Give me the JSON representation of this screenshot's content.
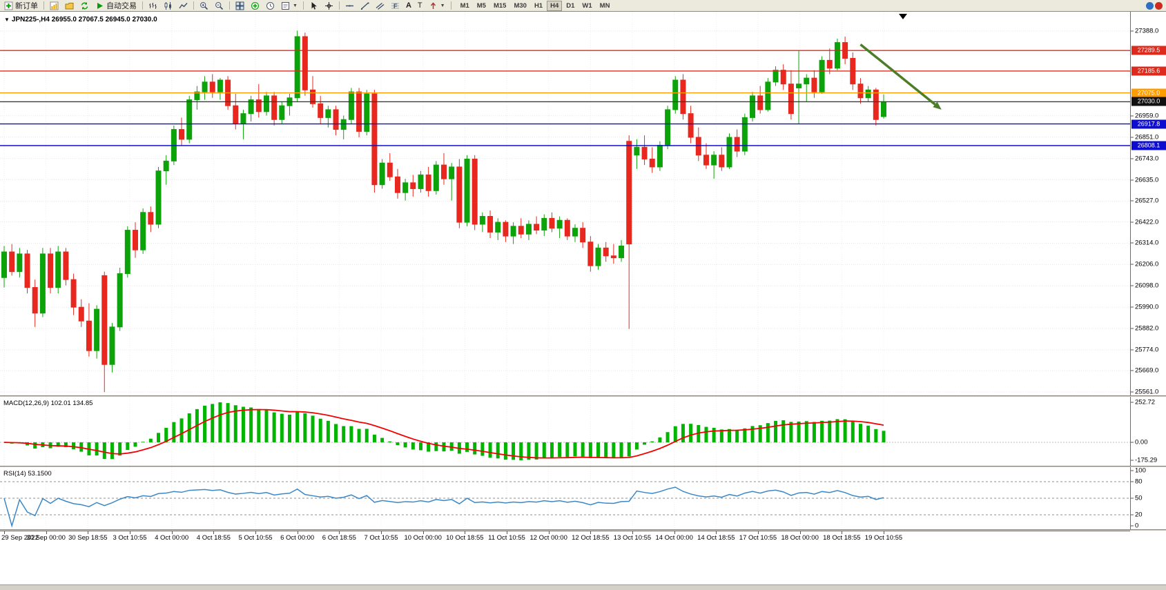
{
  "toolbar": {
    "new_order_label": "新订单",
    "autotrading_label": "自动交易",
    "text_tool_label": "A",
    "label_tool_label": "T",
    "timeframes": [
      "M1",
      "M5",
      "M15",
      "M30",
      "H1",
      "H4",
      "D1",
      "W1",
      "MN"
    ],
    "active_timeframe": "H4"
  },
  "chart": {
    "title": "JPN225-,H4  26955.0 27067.5 26945.0 27030.0"
  },
  "chart_data": [
    {
      "type": "candlestick",
      "symbol": "JPN225-",
      "timeframe": "H4",
      "ohlc_last_display": {
        "open": "26955.0",
        "high": "27067.5",
        "low": "26945.0",
        "close": "27030.0"
      },
      "ylim": [
        25561.0,
        27388.0
      ],
      "y_ticks": [
        27388.0,
        26959.0,
        26851.0,
        26743.0,
        26635.0,
        26527.0,
        26422.0,
        26314.0,
        26206.0,
        26098.0,
        25990.0,
        25882.0,
        25774.0,
        25669.0,
        25561.0
      ],
      "hlines": [
        {
          "price": 27289.5,
          "color": "#dd2a1d",
          "badge": "27289.5"
        },
        {
          "price": 27185.6,
          "color": "#dd2a1d",
          "badge": "27185.6"
        },
        {
          "price": 27075.0,
          "color": "#ff9c00",
          "badge": "27075.0"
        },
        {
          "price": 27030.0,
          "color": "#3a3a3a",
          "badge": "27030.0",
          "badge_color": "#111111"
        },
        {
          "price": 26917.8,
          "color": "#0d0dd0",
          "badge": "26917.8"
        },
        {
          "price": 26808.1,
          "color": "#0d0dd0",
          "badge": "26808.1"
        }
      ],
      "x_labels": [
        "29 Sep 2022",
        "30 Sep 00:00",
        "30 Sep 18:55",
        "3 Oct 10:55",
        "4 Oct 00:00",
        "4 Oct 18:55",
        "5 Oct 10:55",
        "6 Oct 00:00",
        "6 Oct 18:55",
        "7 Oct 10:55",
        "10 Oct 00:00",
        "10 Oct 18:55",
        "11 Oct 10:55",
        "12 Oct 00:00",
        "12 Oct 18:55",
        "13 Oct 10:55",
        "14 Oct 00:00",
        "14 Oct 18:55",
        "17 Oct 10:55",
        "18 Oct 00:00",
        "18 Oct 18:55",
        "19 Oct 10:55"
      ],
      "colors": {
        "up": "#0ca30a",
        "down": "#e8281e"
      },
      "trend_arrow": {
        "from": {
          "x_index": 111,
          "price": 27320
        },
        "to": {
          "x_index": 121.5,
          "price": 26990
        },
        "color": "#4c7d27"
      },
      "ohlc": [
        [
          26140,
          26300,
          26090,
          26270
        ],
        [
          26270,
          26310,
          26150,
          26170
        ],
        [
          26170,
          26290,
          26140,
          26260
        ],
        [
          26260,
          26280,
          26060,
          26090
        ],
        [
          26090,
          26130,
          25890,
          25960
        ],
        [
          25960,
          26290,
          25940,
          26260
        ],
        [
          26260,
          26290,
          26060,
          26090
        ],
        [
          26090,
          26300,
          26060,
          26270
        ],
        [
          26270,
          26290,
          26100,
          26130
        ],
        [
          26130,
          26160,
          25950,
          25990
        ],
        [
          25990,
          26030,
          25890,
          25920
        ],
        [
          25920,
          26010,
          25740,
          25770
        ],
        [
          25770,
          26000,
          25730,
          25980
        ],
        [
          26150,
          26170,
          25560,
          25700
        ],
        [
          25700,
          25910,
          25660,
          25890
        ],
        [
          25890,
          26190,
          25870,
          26160
        ],
        [
          26160,
          26400,
          26140,
          26380
        ],
        [
          26380,
          26420,
          26240,
          26280
        ],
        [
          26280,
          26490,
          26260,
          26470
        ],
        [
          26470,
          26500,
          26370,
          26410
        ],
        [
          26410,
          26700,
          26390,
          26680
        ],
        [
          26680,
          26760,
          26610,
          26730
        ],
        [
          26730,
          26910,
          26710,
          26890
        ],
        [
          26890,
          26950,
          26810,
          26840
        ],
        [
          26840,
          27060,
          26820,
          27040
        ],
        [
          27040,
          27110,
          26990,
          27080
        ],
        [
          27080,
          27160,
          27040,
          27130
        ],
        [
          27130,
          27170,
          27050,
          27080
        ],
        [
          27080,
          27150,
          27040,
          27140
        ],
        [
          27140,
          27160,
          26990,
          27010
        ],
        [
          27010,
          27070,
          26890,
          26920
        ],
        [
          26920,
          26990,
          26840,
          26970
        ],
        [
          26970,
          27060,
          26930,
          27040
        ],
        [
          27040,
          27120,
          26950,
          26980
        ],
        [
          26980,
          27080,
          26960,
          27060
        ],
        [
          27060,
          27080,
          26910,
          26940
        ],
        [
          26940,
          27030,
          26920,
          27010
        ],
        [
          27010,
          27070,
          26960,
          27050
        ],
        [
          27050,
          27390,
          27030,
          27360
        ],
        [
          27360,
          27380,
          27060,
          27090
        ],
        [
          27090,
          27160,
          27000,
          27020
        ],
        [
          27020,
          27060,
          26920,
          26950
        ],
        [
          26950,
          27010,
          26900,
          26990
        ],
        [
          26990,
          27010,
          26860,
          26890
        ],
        [
          26890,
          26960,
          26840,
          26940
        ],
        [
          26940,
          27100,
          26920,
          27080
        ],
        [
          27080,
          27100,
          26850,
          26880
        ],
        [
          26880,
          27090,
          26860,
          27070
        ],
        [
          27070,
          27090,
          26570,
          26610
        ],
        [
          26610,
          26740,
          26590,
          26720
        ],
        [
          26720,
          26770,
          26630,
          26650
        ],
        [
          26650,
          26690,
          26540,
          26570
        ],
        [
          26570,
          26640,
          26530,
          26620
        ],
        [
          26620,
          26660,
          26550,
          26590
        ],
        [
          26590,
          26680,
          26570,
          26660
        ],
        [
          26660,
          26700,
          26550,
          26580
        ],
        [
          26580,
          26730,
          26560,
          26710
        ],
        [
          26710,
          26770,
          26610,
          26640
        ],
        [
          26640,
          26720,
          26530,
          26700
        ],
        [
          26700,
          26740,
          26390,
          26420
        ],
        [
          26420,
          26760,
          26400,
          26740
        ],
        [
          26740,
          26760,
          26380,
          26410
        ],
        [
          26410,
          26470,
          26370,
          26450
        ],
        [
          26450,
          26480,
          26340,
          26370
        ],
        [
          26370,
          26440,
          26330,
          26420
        ],
        [
          26420,
          26430,
          26320,
          26350
        ],
        [
          26350,
          26420,
          26310,
          26400
        ],
        [
          26400,
          26440,
          26340,
          26360
        ],
        [
          26360,
          26430,
          26330,
          26410
        ],
        [
          26410,
          26450,
          26360,
          26380
        ],
        [
          26380,
          26460,
          26350,
          26440
        ],
        [
          26440,
          26470,
          26370,
          26390
        ],
        [
          26390,
          26450,
          26340,
          26430
        ],
        [
          26430,
          26440,
          26330,
          26350
        ],
        [
          26350,
          26410,
          26320,
          26390
        ],
        [
          26390,
          26420,
          26290,
          26320
        ],
        [
          26320,
          26350,
          26170,
          26200
        ],
        [
          26200,
          26310,
          26180,
          26290
        ],
        [
          26290,
          26320,
          26220,
          26250
        ],
        [
          26250,
          26310,
          26210,
          26240
        ],
        [
          26240,
          26330,
          26220,
          26300
        ],
        [
          26830,
          26860,
          25880,
          26310
        ],
        [
          26760,
          26840,
          26690,
          26800
        ],
        [
          26800,
          26860,
          26710,
          26740
        ],
        [
          26740,
          26800,
          26670,
          26700
        ],
        [
          26700,
          26830,
          26680,
          26810
        ],
        [
          26810,
          27010,
          26790,
          26990
        ],
        [
          26990,
          27160,
          26970,
          27140
        ],
        [
          27140,
          27170,
          26940,
          26970
        ],
        [
          26970,
          27010,
          26820,
          26850
        ],
        [
          26850,
          26900,
          26730,
          26760
        ],
        [
          26760,
          26820,
          26690,
          26710
        ],
        [
          26710,
          26780,
          26640,
          26760
        ],
        [
          26760,
          26800,
          26680,
          26700
        ],
        [
          26700,
          26870,
          26690,
          26850
        ],
        [
          26850,
          26890,
          26750,
          26780
        ],
        [
          26780,
          26970,
          26760,
          26950
        ],
        [
          26950,
          27080,
          26930,
          27060
        ],
        [
          27060,
          27110,
          26970,
          26990
        ],
        [
          26990,
          27150,
          26980,
          27130
        ],
        [
          27130,
          27210,
          27110,
          27190
        ],
        [
          27190,
          27220,
          27090,
          27120
        ],
        [
          27120,
          27190,
          26940,
          26970
        ],
        [
          27100,
          27290,
          26920,
          27120
        ],
        [
          27120,
          27170,
          27030,
          27150
        ],
        [
          27150,
          27190,
          27050,
          27080
        ],
        [
          27080,
          27260,
          27070,
          27240
        ],
        [
          27240,
          27300,
          27170,
          27200
        ],
        [
          27200,
          27350,
          27190,
          27330
        ],
        [
          27330,
          27360,
          27220,
          27250
        ],
        [
          27250,
          27280,
          27090,
          27120
        ],
        [
          27120,
          27150,
          27020,
          27050
        ],
        [
          27050,
          27110,
          27030,
          27090
        ],
        [
          27090,
          27100,
          26910,
          26940
        ],
        [
          26955,
          27067.5,
          26945,
          27030
        ]
      ]
    },
    {
      "type": "macd",
      "title": "MACD(12,26,9)",
      "display_values": "102.01 134.85",
      "params": {
        "fast": 12,
        "slow": 26,
        "signal": 9
      },
      "scale_labels": {
        "max": "252.72",
        "zero": "0.00",
        "min": "-175.29"
      },
      "colors": {
        "histogram": "#00b400",
        "signal": "#f40000"
      }
    },
    {
      "type": "rsi",
      "title": "RSI(14)",
      "display_value": "53.1500",
      "period": 14,
      "levels": [
        80,
        50,
        20
      ],
      "scale_ticks": [
        {
          "value": 100,
          "label": "100"
        },
        {
          "value": 80,
          "label": "80"
        },
        {
          "value": 50,
          "label": "50"
        },
        {
          "value": 20,
          "label": "20"
        },
        {
          "value": 0,
          "label": "0"
        }
      ],
      "color": "#3a87c8"
    }
  ]
}
